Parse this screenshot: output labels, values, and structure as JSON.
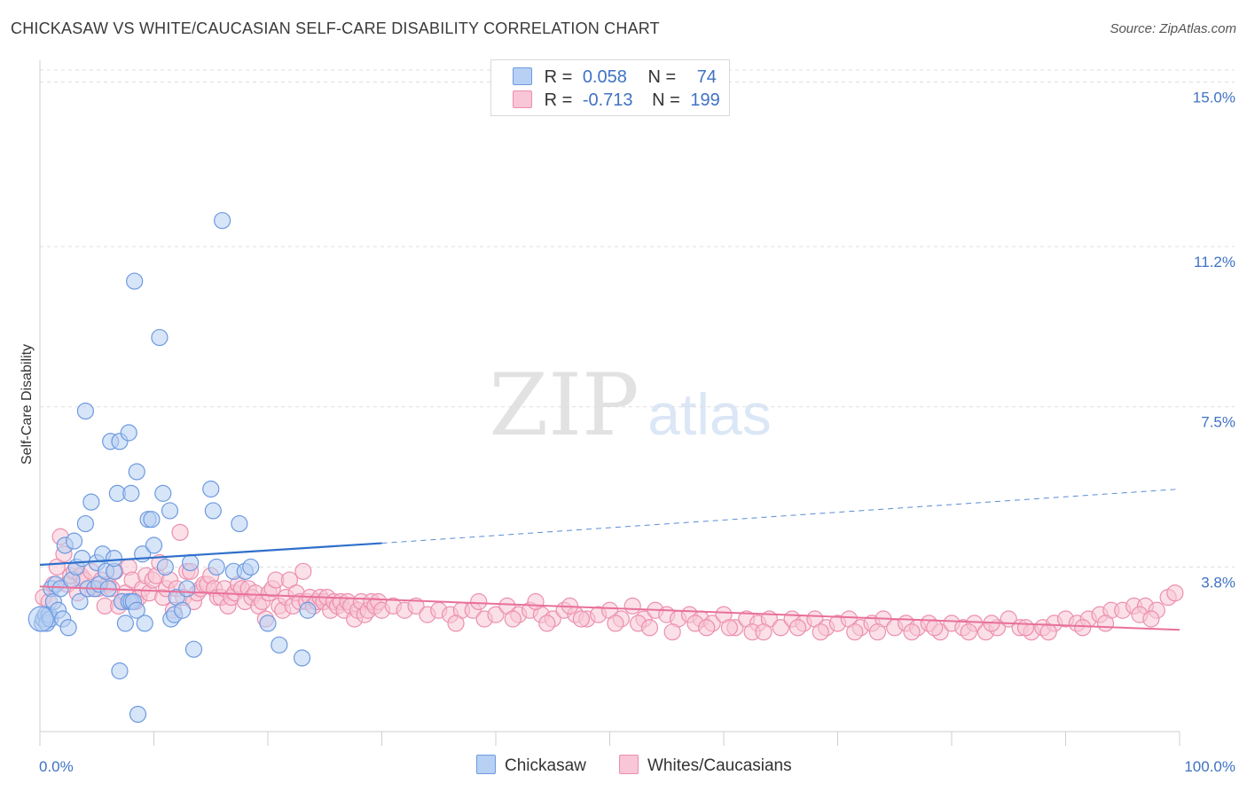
{
  "title": "CHICKASAW VS WHITE/CAUCASIAN SELF-CARE DISABILITY CORRELATION CHART",
  "source": "Source: ZipAtlas.com",
  "watermark": {
    "zip": "ZIP",
    "atlas": "atlas"
  },
  "legend": {
    "series_a": {
      "r_label": "R =",
      "r_value": "0.058",
      "n_label": "N =",
      "n_value": "74"
    },
    "series_b": {
      "r_label": "R =",
      "r_value": "-0.713",
      "n_label": "N =",
      "n_value": "199"
    }
  },
  "colors": {
    "blue_fill": "#b7d0f3",
    "blue_stroke": "#6d9ae0",
    "blue_line": "#2f6fcb",
    "pink_fill": "#f8c6d6",
    "pink_stroke": "#ec8fae",
    "pink_line": "#e8709a",
    "tick_label": "#3f72c4",
    "grid": "#dddddd"
  },
  "chart_data": {
    "type": "scatter",
    "title": "CHICKASAW VS WHITE/CAUCASIAN SELF-CARE DISABILITY CORRELATION CHART",
    "xlabel": "",
    "ylabel": "Self-Care Disability",
    "xlim": [
      0,
      100
    ],
    "ylim": [
      0,
      15.5
    ],
    "x_tick_labels": [
      "0.0%",
      "100.0%"
    ],
    "y_ticks": [
      3.8,
      7.5,
      11.2,
      15.0
    ],
    "y_tick_labels": [
      "3.8%",
      "7.5%",
      "11.2%",
      "15.0%"
    ],
    "grid": true,
    "series": [
      {
        "name": "Chickasaw",
        "trend": {
          "x0": 0,
          "y0": 3.85,
          "x1": 30,
          "y1": 4.35,
          "x_dash_end": 100,
          "y_dash_end": 5.6
        },
        "points": [
          [
            0.2,
            2.5
          ],
          [
            0.3,
            2.6
          ],
          [
            0.5,
            2.7
          ],
          [
            0.6,
            2.5
          ],
          [
            0.8,
            2.7
          ],
          [
            0.9,
            2.6
          ],
          [
            1.0,
            3.3
          ],
          [
            1.2,
            3.0
          ],
          [
            1.4,
            3.4
          ],
          [
            1.6,
            2.8
          ],
          [
            1.8,
            3.3
          ],
          [
            2.0,
            2.6
          ],
          [
            2.2,
            4.3
          ],
          [
            2.5,
            2.4
          ],
          [
            2.8,
            3.5
          ],
          [
            3.0,
            4.4
          ],
          [
            3.2,
            3.8
          ],
          [
            3.5,
            3.0
          ],
          [
            3.7,
            4.0
          ],
          [
            4.0,
            4.8
          ],
          [
            4.0,
            7.4
          ],
          [
            4.2,
            3.3
          ],
          [
            4.5,
            5.3
          ],
          [
            4.8,
            3.3
          ],
          [
            5.0,
            3.9
          ],
          [
            5.2,
            3.4
          ],
          [
            5.5,
            4.1
          ],
          [
            5.8,
            3.7
          ],
          [
            6.0,
            3.3
          ],
          [
            6.2,
            6.7
          ],
          [
            6.5,
            3.7
          ],
          [
            6.5,
            4.0
          ],
          [
            6.8,
            5.5
          ],
          [
            7.0,
            6.7
          ],
          [
            7.0,
            1.4
          ],
          [
            7.2,
            3.0
          ],
          [
            7.5,
            2.5
          ],
          [
            7.8,
            3.0
          ],
          [
            7.8,
            6.9
          ],
          [
            8.0,
            3.0
          ],
          [
            8.0,
            5.5
          ],
          [
            8.2,
            3.0
          ],
          [
            8.5,
            2.8
          ],
          [
            8.3,
            10.4
          ],
          [
            8.5,
            6.0
          ],
          [
            8.6,
            0.4
          ],
          [
            9.0,
            4.1
          ],
          [
            9.2,
            2.5
          ],
          [
            9.5,
            4.9
          ],
          [
            9.8,
            4.9
          ],
          [
            10.0,
            4.3
          ],
          [
            10.5,
            9.1
          ],
          [
            10.8,
            5.5
          ],
          [
            11.0,
            3.8
          ],
          [
            11.4,
            5.1
          ],
          [
            11.5,
            2.6
          ],
          [
            11.8,
            2.7
          ],
          [
            12.0,
            3.1
          ],
          [
            12.5,
            2.8
          ],
          [
            12.9,
            3.3
          ],
          [
            13.2,
            3.9
          ],
          [
            13.5,
            1.9
          ],
          [
            15.0,
            5.6
          ],
          [
            15.2,
            5.1
          ],
          [
            15.5,
            3.8
          ],
          [
            16.0,
            11.8
          ],
          [
            17.0,
            3.7
          ],
          [
            17.5,
            4.8
          ],
          [
            18.0,
            3.7
          ],
          [
            18.5,
            3.8
          ],
          [
            20.0,
            2.5
          ],
          [
            21.0,
            2.0
          ],
          [
            23.0,
            1.7
          ],
          [
            23.5,
            2.8
          ]
        ]
      },
      {
        "name": "Whites/Caucasians",
        "trend": {
          "x0": 0,
          "y0": 3.35,
          "x1": 100,
          "y1": 2.35
        },
        "points": [
          [
            0.3,
            3.1
          ],
          [
            0.8,
            3.0
          ],
          [
            1.2,
            3.4
          ],
          [
            1.5,
            3.8
          ],
          [
            1.8,
            4.5
          ],
          [
            2.1,
            4.1
          ],
          [
            2.4,
            3.4
          ],
          [
            2.7,
            3.6
          ],
          [
            3.0,
            3.7
          ],
          [
            3.3,
            3.2
          ],
          [
            3.6,
            3.6
          ],
          [
            3.9,
            3.5
          ],
          [
            4.2,
            3.3
          ],
          [
            4.5,
            3.7
          ],
          [
            4.8,
            3.3
          ],
          [
            5.1,
            3.3
          ],
          [
            5.4,
            3.5
          ],
          [
            5.7,
            2.9
          ],
          [
            6.0,
            3.4
          ],
          [
            6.3,
            3.3
          ],
          [
            6.6,
            3.7
          ],
          [
            6.9,
            2.9
          ],
          [
            7.2,
            3.0
          ],
          [
            7.5,
            3.2
          ],
          [
            7.8,
            3.8
          ],
          [
            8.1,
            3.5
          ],
          [
            8.4,
            3.0
          ],
          [
            8.7,
            3.1
          ],
          [
            9.0,
            3.3
          ],
          [
            9.3,
            3.6
          ],
          [
            9.6,
            3.2
          ],
          [
            9.9,
            3.5
          ],
          [
            10.2,
            3.6
          ],
          [
            10.5,
            3.9
          ],
          [
            10.8,
            3.1
          ],
          [
            11.1,
            3.3
          ],
          [
            11.4,
            3.5
          ],
          [
            11.7,
            2.8
          ],
          [
            12.0,
            3.3
          ],
          [
            12.3,
            4.6
          ],
          [
            12.6,
            3.1
          ],
          [
            12.9,
            3.7
          ],
          [
            13.2,
            3.7
          ],
          [
            13.5,
            3.0
          ],
          [
            13.8,
            3.2
          ],
          [
            14.1,
            3.3
          ],
          [
            14.4,
            3.4
          ],
          [
            14.7,
            3.4
          ],
          [
            15.0,
            3.6
          ],
          [
            15.3,
            3.3
          ],
          [
            15.6,
            3.1
          ],
          [
            15.9,
            3.1
          ],
          [
            16.2,
            3.3
          ],
          [
            16.5,
            2.9
          ],
          [
            16.8,
            3.1
          ],
          [
            17.1,
            3.2
          ],
          [
            17.4,
            3.4
          ],
          [
            17.7,
            3.3
          ],
          [
            18.0,
            3.0
          ],
          [
            18.3,
            3.3
          ],
          [
            18.6,
            3.1
          ],
          [
            18.9,
            3.2
          ],
          [
            19.2,
            2.9
          ],
          [
            19.5,
            3.0
          ],
          [
            19.8,
            2.6
          ],
          [
            20.1,
            3.2
          ],
          [
            20.4,
            3.3
          ],
          [
            20.7,
            3.5
          ],
          [
            21.0,
            2.9
          ],
          [
            21.3,
            2.8
          ],
          [
            21.6,
            3.1
          ],
          [
            21.9,
            3.5
          ],
          [
            22.2,
            2.9
          ],
          [
            22.5,
            3.2
          ],
          [
            22.8,
            3.0
          ],
          [
            23.1,
            3.7
          ],
          [
            23.4,
            3.0
          ],
          [
            23.7,
            3.1
          ],
          [
            24.0,
            2.9
          ],
          [
            24.3,
            3.0
          ],
          [
            24.6,
            3.1
          ],
          [
            24.9,
            3.0
          ],
          [
            25.2,
            3.1
          ],
          [
            25.5,
            2.8
          ],
          [
            25.8,
            3.0
          ],
          [
            26.1,
            2.9
          ],
          [
            26.4,
            3.0
          ],
          [
            26.7,
            2.8
          ],
          [
            27.0,
            3.0
          ],
          [
            27.3,
            2.9
          ],
          [
            27.6,
            2.6
          ],
          [
            27.9,
            2.8
          ],
          [
            28.2,
            3.0
          ],
          [
            28.5,
            2.7
          ],
          [
            28.8,
            2.8
          ],
          [
            29.1,
            3.0
          ],
          [
            29.4,
            2.9
          ],
          [
            29.7,
            3.0
          ],
          [
            30.0,
            2.8
          ],
          [
            31.0,
            2.9
          ],
          [
            32.0,
            2.8
          ],
          [
            33.0,
            2.9
          ],
          [
            34.0,
            2.7
          ],
          [
            35.0,
            2.8
          ],
          [
            36.0,
            2.7
          ],
          [
            37.0,
            2.8
          ],
          [
            38.0,
            2.8
          ],
          [
            39.0,
            2.6
          ],
          [
            40.0,
            2.7
          ],
          [
            41.0,
            2.9
          ],
          [
            42.0,
            2.7
          ],
          [
            43.0,
            2.8
          ],
          [
            44.0,
            2.7
          ],
          [
            45.0,
            2.6
          ],
          [
            46.0,
            2.8
          ],
          [
            47.0,
            2.7
          ],
          [
            48.0,
            2.6
          ],
          [
            49.0,
            2.7
          ],
          [
            50.0,
            2.8
          ],
          [
            51.0,
            2.6
          ],
          [
            52.0,
            2.9
          ],
          [
            53.0,
            2.6
          ],
          [
            54.0,
            2.8
          ],
          [
            55.0,
            2.7
          ],
          [
            56.0,
            2.6
          ],
          [
            57.0,
            2.7
          ],
          [
            58.0,
            2.6
          ],
          [
            59.0,
            2.5
          ],
          [
            60.0,
            2.7
          ],
          [
            61.0,
            2.4
          ],
          [
            62.0,
            2.6
          ],
          [
            63.0,
            2.5
          ],
          [
            64.0,
            2.6
          ],
          [
            65.0,
            2.4
          ],
          [
            66.0,
            2.6
          ],
          [
            67.0,
            2.5
          ],
          [
            68.0,
            2.6
          ],
          [
            69.0,
            2.4
          ],
          [
            70.0,
            2.5
          ],
          [
            71.0,
            2.6
          ],
          [
            72.0,
            2.4
          ],
          [
            73.0,
            2.5
          ],
          [
            74.0,
            2.6
          ],
          [
            75.0,
            2.4
          ],
          [
            76.0,
            2.5
          ],
          [
            77.0,
            2.4
          ],
          [
            78.0,
            2.5
          ],
          [
            79.0,
            2.3
          ],
          [
            80.0,
            2.5
          ],
          [
            81.0,
            2.4
          ],
          [
            82.0,
            2.5
          ],
          [
            83.0,
            2.3
          ],
          [
            84.0,
            2.4
          ],
          [
            85.0,
            2.6
          ],
          [
            86.0,
            2.4
          ],
          [
            87.0,
            2.3
          ],
          [
            88.0,
            2.4
          ],
          [
            89.0,
            2.5
          ],
          [
            90.0,
            2.6
          ],
          [
            91.0,
            2.5
          ],
          [
            92.0,
            2.6
          ],
          [
            93.0,
            2.7
          ],
          [
            94.0,
            2.8
          ],
          [
            95.0,
            2.8
          ],
          [
            96.0,
            2.9
          ],
          [
            97.0,
            2.9
          ],
          [
            98.0,
            2.8
          ],
          [
            99.0,
            3.1
          ],
          [
            99.6,
            3.2
          ],
          [
            43.5,
            3.0
          ],
          [
            46.5,
            2.9
          ],
          [
            52.5,
            2.5
          ],
          [
            57.5,
            2.5
          ],
          [
            62.5,
            2.3
          ],
          [
            66.5,
            2.4
          ],
          [
            71.5,
            2.3
          ],
          [
            76.5,
            2.3
          ],
          [
            81.5,
            2.3
          ],
          [
            86.5,
            2.4
          ],
          [
            91.5,
            2.4
          ],
          [
            36.5,
            2.5
          ],
          [
            41.5,
            2.6
          ],
          [
            47.5,
            2.6
          ],
          [
            53.5,
            2.4
          ],
          [
            58.5,
            2.4
          ],
          [
            63.5,
            2.3
          ],
          [
            68.5,
            2.3
          ],
          [
            73.5,
            2.3
          ],
          [
            78.5,
            2.4
          ],
          [
            83.5,
            2.5
          ],
          [
            88.5,
            2.3
          ],
          [
            93.5,
            2.5
          ],
          [
            96.5,
            2.7
          ],
          [
            97.5,
            2.6
          ],
          [
            38.5,
            3.0
          ],
          [
            44.5,
            2.5
          ],
          [
            50.5,
            2.5
          ],
          [
            55.5,
            2.3
          ],
          [
            60.5,
            2.4
          ]
        ]
      }
    ]
  },
  "bottom_legend": {
    "a": "Chickasaw",
    "b": "Whites/Caucasians"
  }
}
